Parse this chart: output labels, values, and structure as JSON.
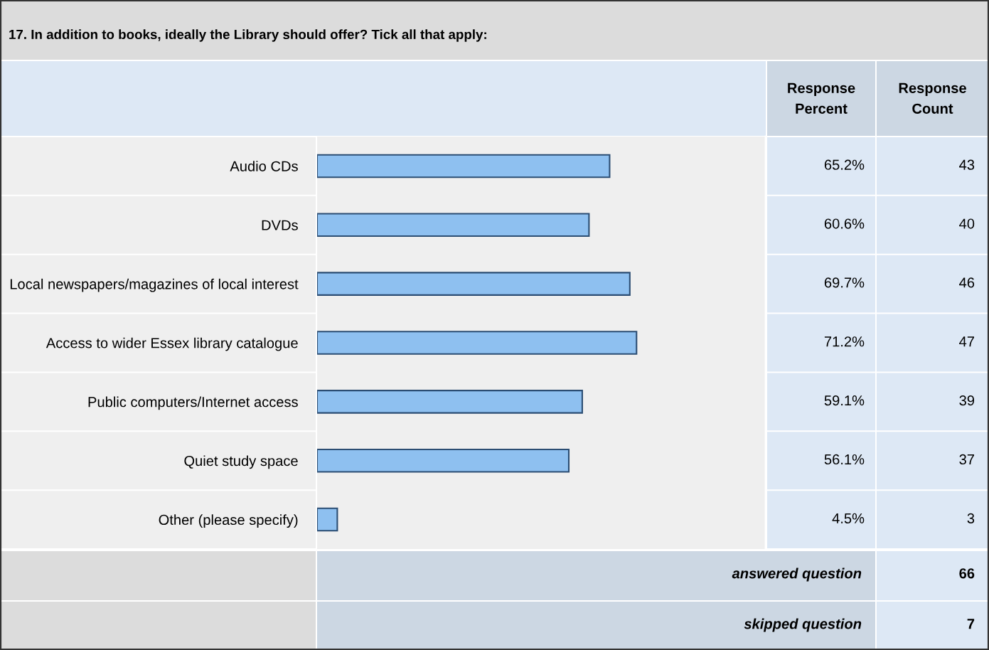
{
  "chart_data": {
    "type": "bar",
    "orientation": "horizontal",
    "title": "17. In addition to books, ideally the Library should offer? Tick all that apply:",
    "categories": [
      "Audio CDs",
      "DVDs",
      "Local newspapers/magazines of local interest",
      "Access to wider Essex library catalogue",
      "Public computers/Internet access",
      "Quiet study space",
      "Other (please specify)"
    ],
    "values": [
      65.2,
      60.6,
      69.7,
      71.2,
      59.1,
      56.1,
      4.5
    ],
    "value_labels": [
      "65.2%",
      "60.6%",
      "69.7%",
      "71.2%",
      "59.1%",
      "56.1%",
      "4.5%"
    ],
    "color": "#8ec0f0",
    "xlim": [
      0,
      100
    ],
    "tick_labels": "y",
    "grid": false,
    "legend": false,
    "annotations": [
      "Response\nPercent",
      "Response\nCount",
      "43",
      "40",
      "46",
      "47",
      "39",
      "37",
      "3",
      "answered question",
      "66",
      "skipped question",
      "7"
    ]
  }
}
